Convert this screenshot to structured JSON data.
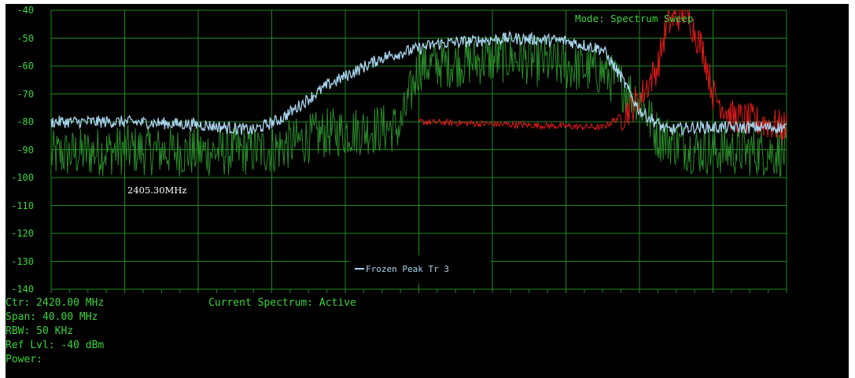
{
  "mode_label": "Mode: Spectrum Sweep",
  "y_axis": {
    "ticks": [
      "-40",
      "-50",
      "-60",
      "-70",
      "-80",
      "-90",
      "-100",
      "-110",
      "-120",
      "-130",
      "-140"
    ]
  },
  "marker_label": "2405.30MHz",
  "legend": {
    "label": "Frozen Peak Tr 3",
    "color": "#a9d5ee"
  },
  "status": {
    "current_spectrum": "Current Spectrum: Active"
  },
  "info": {
    "center": "Ctr: 2420.00 MHz",
    "span": "Span: 40.00 MHz",
    "rbw": "RBW: 50 KHz",
    "ref_level": "Ref Lvl: -40 dBm",
    "power": "Power:"
  },
  "colors": {
    "background": "#000000",
    "grid": "#1f8a1f",
    "text": "#3cd23c",
    "live_trace": "#2a8a2a",
    "frozen_trace": "#a9d5ee",
    "red_trace": "#e01a1a"
  },
  "chart_data": {
    "type": "line",
    "x_unit": "MHz",
    "x_range": [
      2400,
      2440
    ],
    "ylim": [
      -140,
      -40
    ],
    "grid": true,
    "legend_placement": "bottom-center",
    "series": [
      {
        "name": "Frozen Peak Tr 3",
        "x": [
          2400,
          2404,
          2408,
          2411,
          2412.5,
          2415,
          2418,
          2421,
          2425,
          2428,
          2430,
          2431,
          2432,
          2433.5,
          2435,
          2440
        ],
        "values": [
          -80,
          -80,
          -81,
          -83,
          -79,
          -67,
          -57,
          -52,
          -50,
          -51,
          -54,
          -64,
          -76,
          -83,
          -82,
          -82
        ]
      },
      {
        "x": [
          2400,
          2404,
          2408,
          2412,
          2415,
          2419,
          2420,
          2425,
          2430,
          2432,
          2433,
          2435,
          2440
        ],
        "values": [
          -92,
          -90,
          -91,
          -90,
          -84,
          -82,
          -60,
          -57,
          -62,
          -72,
          -85,
          -90,
          -91
        ]
      },
      {
        "x": [
          2420,
          2425,
          2430,
          2431,
          2432,
          2433,
          2433.5,
          2434.5,
          2435.5,
          2436,
          2437,
          2440
        ],
        "values": [
          -80,
          -81,
          -82,
          -78,
          -72,
          -60,
          -45,
          -40,
          -55,
          -70,
          -78,
          -82
        ]
      }
    ]
  }
}
